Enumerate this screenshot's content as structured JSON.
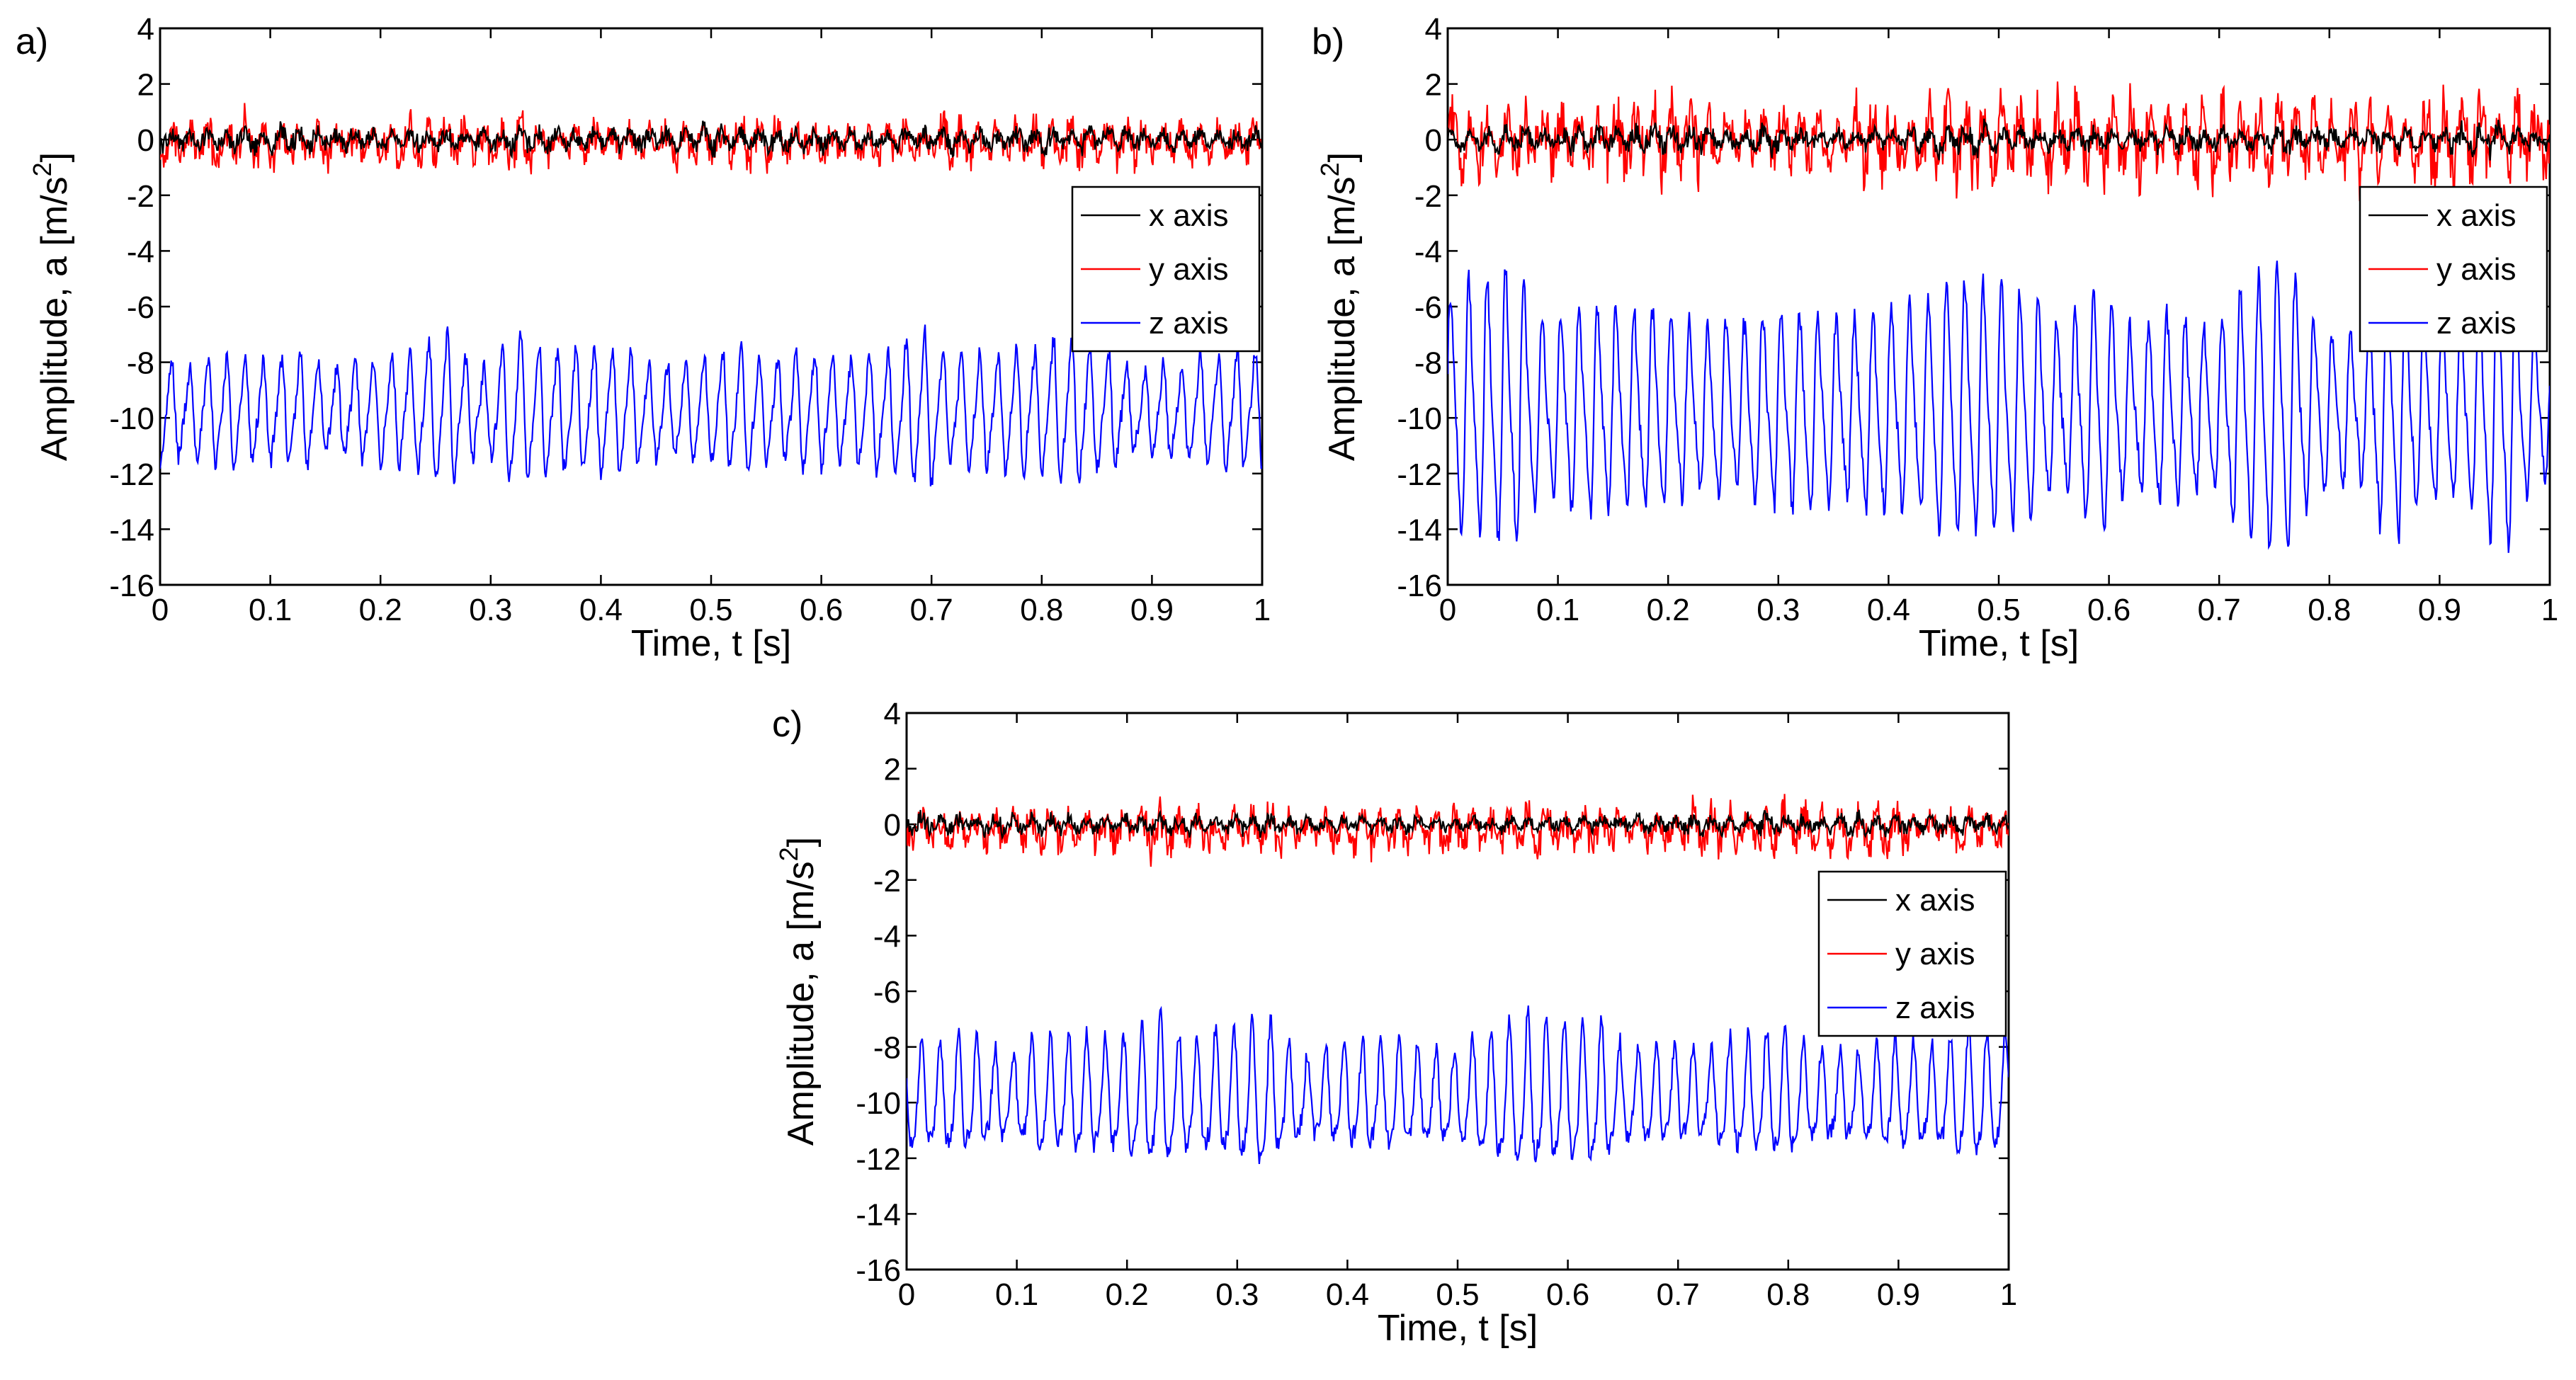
{
  "chart_data": [
    {
      "type": "line",
      "panel_label": "a)",
      "xlabel": "Time, t [s]",
      "ylabel": "Amplitude, a [m/s",
      "ylabel_sup": "2",
      "ylabel_close": "]",
      "xlim": [
        0,
        1
      ],
      "ylim": [
        -16,
        4
      ],
      "xticks": [
        "0",
        "0.1",
        "0.2",
        "0.3",
        "0.4",
        "0.5",
        "0.6",
        "0.7",
        "0.8",
        "0.9",
        "1"
      ],
      "yticks": [
        "4",
        "2",
        "0",
        "-2",
        "-4",
        "-6",
        "-8",
        "-10",
        "-12",
        "-14",
        "-16"
      ],
      "legend": [
        "x axis",
        "y axis",
        "z axis"
      ],
      "legend_position": "right",
      "series": [
        {
          "name": "x axis",
          "color": "#000000",
          "mean": 0.0,
          "amplitude": 0.35,
          "noise": 0.25,
          "freq_hz": 60
        },
        {
          "name": "y axis",
          "color": "#ff0000",
          "mean": -0.1,
          "amplitude": 0.7,
          "noise": 0.55,
          "freq_hz": 60
        },
        {
          "name": "z axis",
          "color": "#0000ff",
          "mean": -9.8,
          "amplitude": 2.0,
          "noise": 0.35,
          "freq_hz": 60
        }
      ]
    },
    {
      "type": "line",
      "panel_label": "b)",
      "xlabel": "Time, t [s]",
      "ylabel": "Amplitude, a [m/s",
      "ylabel_sup": "2",
      "ylabel_close": "]",
      "xlim": [
        0,
        1
      ],
      "ylim": [
        -16,
        4
      ],
      "xticks": [
        "0",
        "0.1",
        "0.2",
        "0.3",
        "0.4",
        "0.5",
        "0.6",
        "0.7",
        "0.8",
        "0.9",
        "1"
      ],
      "yticks": [
        "4",
        "2",
        "0",
        "-2",
        "-4",
        "-6",
        "-8",
        "-10",
        "-12",
        "-14",
        "-16"
      ],
      "legend": [
        "x axis",
        "y axis",
        "z axis"
      ],
      "legend_position": "right",
      "series": [
        {
          "name": "x axis",
          "color": "#000000",
          "mean": 0.0,
          "amplitude": 0.4,
          "noise": 0.25,
          "freq_hz": 60
        },
        {
          "name": "y axis",
          "color": "#ff0000",
          "mean": 0.0,
          "amplitude": 1.3,
          "noise": 0.6,
          "freq_hz": 60
        },
        {
          "name": "z axis",
          "color": "#0000ff",
          "mean": -9.8,
          "amplitude": 3.6,
          "noise": 0.45,
          "freq_hz": 60
        }
      ]
    },
    {
      "type": "line",
      "panel_label": "c)",
      "xlabel": "Time, t [s]",
      "ylabel": "Amplitude, a [m/s",
      "ylabel_sup": "2",
      "ylabel_close": "]",
      "xlim": [
        0,
        1
      ],
      "ylim": [
        -16,
        4
      ],
      "xticks": [
        "0",
        "0.1",
        "0.2",
        "0.3",
        "0.4",
        "0.5",
        "0.6",
        "0.7",
        "0.8",
        "0.9",
        "1"
      ],
      "yticks": [
        "4",
        "2",
        "0",
        "-2",
        "-4",
        "-6",
        "-8",
        "-10",
        "-12",
        "-14",
        "-16"
      ],
      "legend": [
        "x axis",
        "y axis",
        "z axis"
      ],
      "legend_position": "right",
      "series": [
        {
          "name": "x axis",
          "color": "#000000",
          "mean": 0.0,
          "amplitude": 0.3,
          "noise": 0.2,
          "freq_hz": 60
        },
        {
          "name": "y axis",
          "color": "#ff0000",
          "mean": -0.2,
          "amplitude": 0.7,
          "noise": 0.5,
          "freq_hz": 60
        },
        {
          "name": "z axis",
          "color": "#0000ff",
          "mean": -9.9,
          "amplitude": 1.9,
          "noise": 0.35,
          "freq_hz": 60
        }
      ]
    }
  ]
}
